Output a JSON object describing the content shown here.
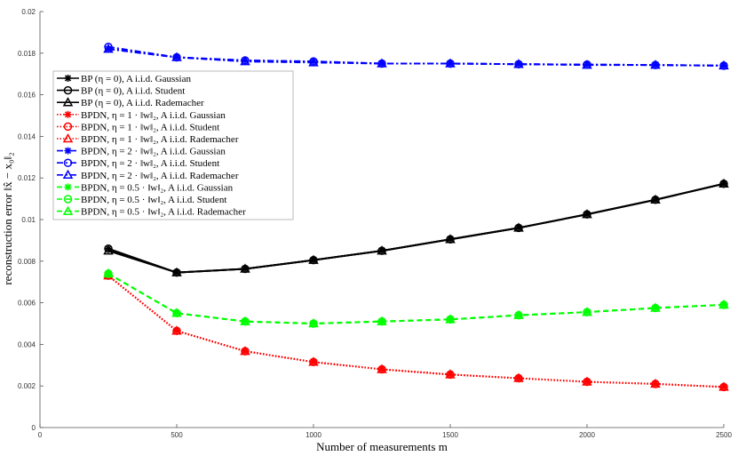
{
  "chart_data": {
    "type": "line",
    "title": "",
    "xlabel": "Number of measurements m",
    "ylabel": "reconstruction error ‖x̂ − x₀‖₂",
    "xlim": [
      0,
      2500
    ],
    "ylim": [
      0,
      0.02
    ],
    "xticks": [
      "0",
      "500",
      "1000",
      "1500",
      "2000",
      "2500"
    ],
    "xtick_values": [
      0,
      500,
      1000,
      1500,
      2000,
      2500
    ],
    "yticks": [
      "0",
      "0.002",
      "0.004",
      "0.006",
      "0.008",
      "0.01",
      "0.012",
      "0.014",
      "0.016",
      "0.018",
      "0.02"
    ],
    "ytick_values": [
      0,
      0.002,
      0.004,
      0.006,
      0.008,
      0.01,
      0.012,
      0.014,
      0.016,
      0.018,
      0.02
    ],
    "grid": false,
    "legend_position": "upper-left",
    "x": [
      250,
      500,
      750,
      1000,
      1250,
      1500,
      1750,
      2000,
      2250,
      2500
    ],
    "series": [
      {
        "name": "BP (η = 0), A i.i.d. Gaussian",
        "color": "#000000",
        "style": "solid",
        "marker": "asterisk",
        "values": [
          0.0086,
          0.00745,
          0.00763,
          0.00805,
          0.0085,
          0.00905,
          0.0096,
          0.01025,
          0.01095,
          0.01172
        ]
      },
      {
        "name": "BP (η = 0), A i.i.d. Student",
        "color": "#000000",
        "style": "solid",
        "marker": "circle",
        "values": [
          0.0086,
          0.00745,
          0.00763,
          0.00805,
          0.0085,
          0.00905,
          0.0096,
          0.01025,
          0.01095,
          0.01172
        ]
      },
      {
        "name": "BP (η = 0), A i.i.d. Rademacher",
        "color": "#000000",
        "style": "solid",
        "marker": "triangle",
        "values": [
          0.0085,
          0.00745,
          0.00763,
          0.00805,
          0.0085,
          0.00905,
          0.0096,
          0.01025,
          0.01095,
          0.01172
        ]
      },
      {
        "name": "BPDN, η = 1 · ‖w‖₂, A i.i.d. Gaussian",
        "color": "#ff0000",
        "style": "dotted",
        "marker": "asterisk",
        "values": [
          0.0073,
          0.00465,
          0.00367,
          0.00315,
          0.0028,
          0.00255,
          0.00237,
          0.0022,
          0.0021,
          0.00195
        ]
      },
      {
        "name": "BPDN, η = 1 · ‖w‖₂, A i.i.d. Student",
        "color": "#ff0000",
        "style": "dotted",
        "marker": "circle",
        "values": [
          0.0073,
          0.00465,
          0.00367,
          0.00315,
          0.0028,
          0.00255,
          0.00237,
          0.0022,
          0.0021,
          0.00195
        ]
      },
      {
        "name": "BPDN, η = 1 · ‖w‖₂, A i.i.d. Rademacher",
        "color": "#ff0000",
        "style": "dotted",
        "marker": "triangle",
        "values": [
          0.0073,
          0.00465,
          0.00367,
          0.00315,
          0.0028,
          0.00255,
          0.00237,
          0.0022,
          0.0021,
          0.00195
        ]
      },
      {
        "name": "BPDN, η = 2 · ‖w‖₂, A i.i.d. Gaussian",
        "color": "#0000ff",
        "style": "dashdot",
        "marker": "asterisk",
        "values": [
          0.0182,
          0.0178,
          0.01765,
          0.0176,
          0.0175,
          0.0175,
          0.01747,
          0.01745,
          0.01743,
          0.0174
        ]
      },
      {
        "name": "BPDN, η = 2 · ‖w‖₂, A i.i.d. Student",
        "color": "#0000ff",
        "style": "dashdot",
        "marker": "circle",
        "values": [
          0.0183,
          0.0178,
          0.01765,
          0.0176,
          0.0175,
          0.0175,
          0.01747,
          0.01745,
          0.01743,
          0.0174
        ]
      },
      {
        "name": "BPDN, η = 2 · ‖w‖₂, A i.i.d. Rademacher",
        "color": "#0000ff",
        "style": "dashdot",
        "marker": "triangle",
        "values": [
          0.0182,
          0.0178,
          0.0176,
          0.01755,
          0.0175,
          0.0175,
          0.01747,
          0.01743,
          0.01743,
          0.0174
        ]
      },
      {
        "name": "BPDN, η = 0.5 · ‖w‖₂, A i.i.d. Gaussian",
        "color": "#00ff00",
        "style": "dashed",
        "marker": "asterisk",
        "values": [
          0.0074,
          0.0055,
          0.0051,
          0.005,
          0.0051,
          0.0052,
          0.0054,
          0.00555,
          0.00575,
          0.0059
        ]
      },
      {
        "name": "BPDN, η = 0.5 · ‖w‖₂, A i.i.d. Student",
        "color": "#00ff00",
        "style": "dashed",
        "marker": "circle",
        "values": [
          0.0074,
          0.0055,
          0.0051,
          0.005,
          0.0051,
          0.0052,
          0.0054,
          0.00555,
          0.00575,
          0.0059
        ]
      },
      {
        "name": "BPDN, η = 0.5 · ‖w‖₂, A i.i.d. Rademacher",
        "color": "#00ff00",
        "style": "dashed",
        "marker": "triangle",
        "values": [
          0.0074,
          0.0055,
          0.0051,
          0.005,
          0.0051,
          0.0052,
          0.0054,
          0.00555,
          0.00575,
          0.0059
        ]
      }
    ]
  }
}
